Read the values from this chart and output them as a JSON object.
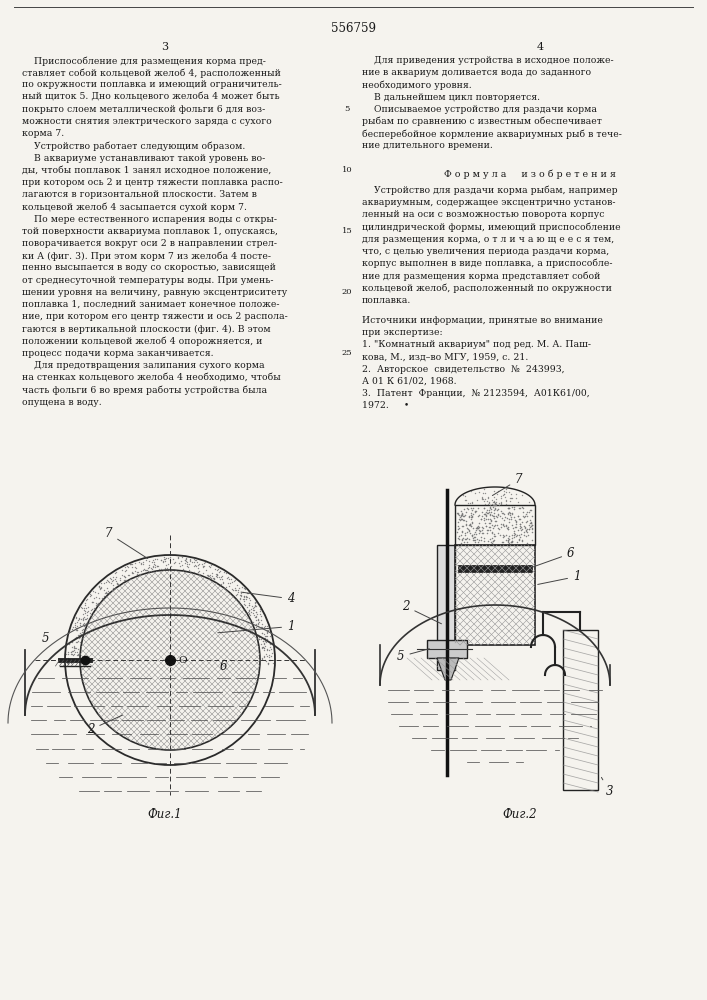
{
  "page_width": 7.07,
  "page_height": 10.0,
  "dpi": 100,
  "background_color": "#f5f3ee",
  "patent_number": "556759",
  "page_left_num": "3",
  "page_right_num": "4",
  "text_color": "#1a1a1a",
  "fig1_caption": "Фиг.1",
  "fig2_caption": "Фиг.2",
  "formula_title": "Ф о р м у л а     и з о б р е т е н и я"
}
